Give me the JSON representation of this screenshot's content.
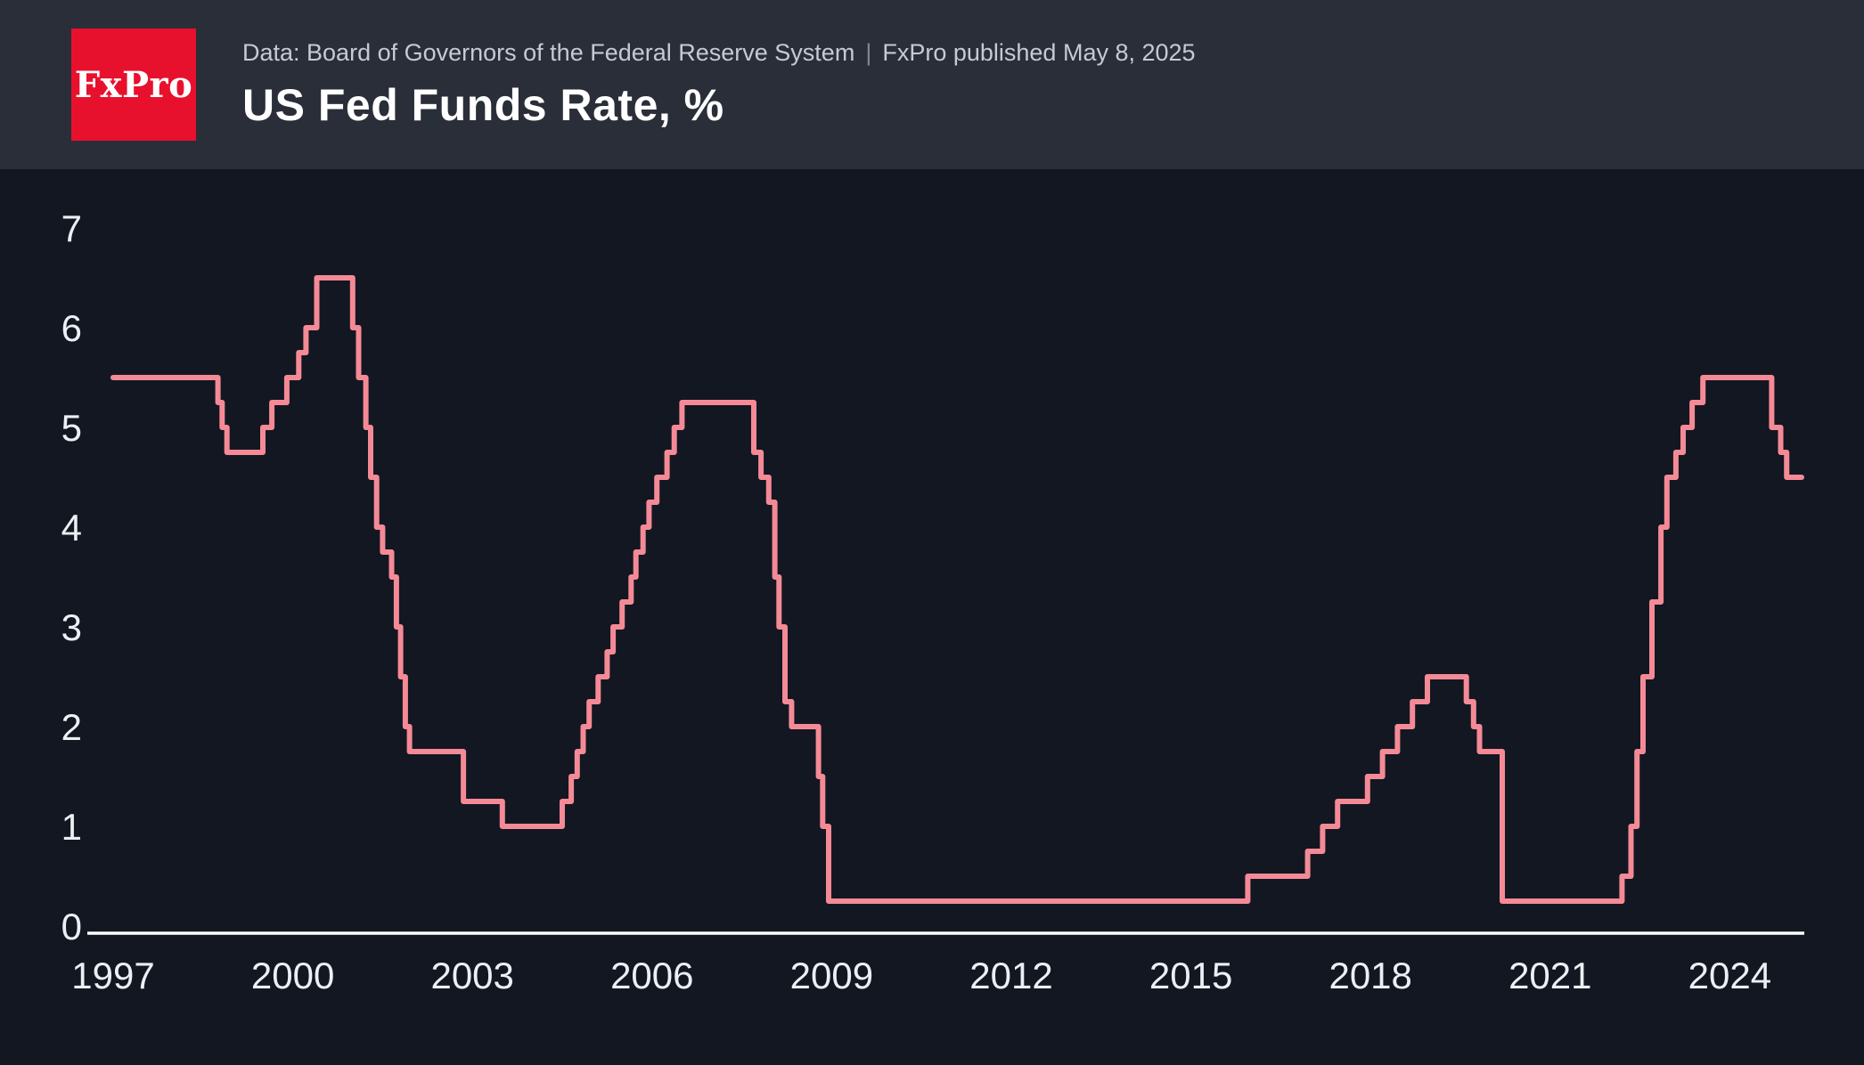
{
  "header": {
    "logo_text": "FxPro",
    "source_text": "Data: Board of Governors of the Federal Reserve System",
    "divider": "|",
    "published_text": "FxPro published May 8, 2025",
    "title": "US Fed Funds Rate, %"
  },
  "colors": {
    "header_bg": "#2a2e39",
    "chart_bg": "#131722",
    "logo_red": "#e8112d",
    "line": "#f48a96",
    "axis": "#ffffff",
    "tick_text": "#eceff4"
  },
  "chart_data": {
    "type": "line",
    "title": "US Fed Funds Rate, %",
    "series_name": "US Fed Funds Rate (%)",
    "step": true,
    "grid": false,
    "legend": "none",
    "xlabel": "",
    "ylabel": "",
    "x_range": [
      1997,
      2025.4
    ],
    "ylim": [
      0,
      7
    ],
    "y_ticks": [
      0,
      1,
      2,
      3,
      4,
      5,
      6,
      7
    ],
    "x_ticks": [
      1997,
      2000,
      2003,
      2006,
      2009,
      2012,
      2015,
      2018,
      2021,
      2024
    ],
    "points": [
      [
        1997.0,
        5.5
      ],
      [
        1998.75,
        5.25
      ],
      [
        1998.82,
        5.0
      ],
      [
        1998.9,
        4.75
      ],
      [
        1999.5,
        5.0
      ],
      [
        1999.65,
        5.25
      ],
      [
        1999.9,
        5.5
      ],
      [
        2000.1,
        5.75
      ],
      [
        2000.22,
        6.0
      ],
      [
        2000.4,
        6.5
      ],
      [
        2001.0,
        6.0
      ],
      [
        2001.1,
        5.5
      ],
      [
        2001.22,
        5.0
      ],
      [
        2001.3,
        4.5
      ],
      [
        2001.4,
        4.0
      ],
      [
        2001.5,
        3.75
      ],
      [
        2001.65,
        3.5
      ],
      [
        2001.73,
        3.0
      ],
      [
        2001.8,
        2.5
      ],
      [
        2001.88,
        2.0
      ],
      [
        2001.95,
        1.75
      ],
      [
        2002.85,
        1.25
      ],
      [
        2003.5,
        1.0
      ],
      [
        2004.5,
        1.25
      ],
      [
        2004.65,
        1.5
      ],
      [
        2004.75,
        1.75
      ],
      [
        2004.85,
        2.0
      ],
      [
        2004.95,
        2.25
      ],
      [
        2005.1,
        2.5
      ],
      [
        2005.25,
        2.75
      ],
      [
        2005.35,
        3.0
      ],
      [
        2005.5,
        3.25
      ],
      [
        2005.65,
        3.5
      ],
      [
        2005.73,
        3.75
      ],
      [
        2005.85,
        4.0
      ],
      [
        2005.95,
        4.25
      ],
      [
        2006.08,
        4.5
      ],
      [
        2006.25,
        4.75
      ],
      [
        2006.37,
        5.0
      ],
      [
        2006.5,
        5.25
      ],
      [
        2007.7,
        4.75
      ],
      [
        2007.82,
        4.5
      ],
      [
        2007.95,
        4.25
      ],
      [
        2008.05,
        3.5
      ],
      [
        2008.12,
        3.0
      ],
      [
        2008.22,
        2.25
      ],
      [
        2008.33,
        2.0
      ],
      [
        2008.78,
        1.5
      ],
      [
        2008.85,
        1.0
      ],
      [
        2008.95,
        0.25
      ],
      [
        2015.95,
        0.5
      ],
      [
        2016.95,
        0.75
      ],
      [
        2017.2,
        1.0
      ],
      [
        2017.45,
        1.25
      ],
      [
        2017.95,
        1.5
      ],
      [
        2018.2,
        1.75
      ],
      [
        2018.45,
        2.0
      ],
      [
        2018.7,
        2.25
      ],
      [
        2018.95,
        2.5
      ],
      [
        2019.6,
        2.25
      ],
      [
        2019.72,
        2.0
      ],
      [
        2019.82,
        1.75
      ],
      [
        2020.2,
        0.25
      ],
      [
        2022.2,
        0.5
      ],
      [
        2022.35,
        1.0
      ],
      [
        2022.45,
        1.75
      ],
      [
        2022.55,
        2.5
      ],
      [
        2022.7,
        3.25
      ],
      [
        2022.85,
        4.0
      ],
      [
        2022.95,
        4.5
      ],
      [
        2023.1,
        4.75
      ],
      [
        2023.22,
        5.0
      ],
      [
        2023.37,
        5.25
      ],
      [
        2023.55,
        5.5
      ],
      [
        2024.7,
        5.0
      ],
      [
        2024.85,
        4.75
      ],
      [
        2024.95,
        4.5
      ],
      [
        2025.2,
        4.5
      ]
    ]
  }
}
